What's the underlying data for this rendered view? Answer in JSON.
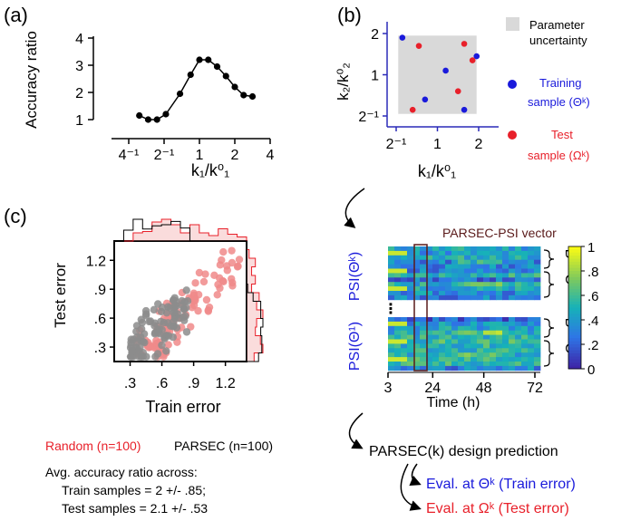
{
  "panel_a": {
    "label": "(a)",
    "ylabel": "Accuracy ratio",
    "xlabel": "k₁/k⁰₁",
    "yticks": [
      "1",
      "2",
      "3",
      "4"
    ],
    "xticks": [
      "4⁻¹",
      "2⁻¹",
      "1",
      "2",
      "4"
    ],
    "chart_data": {
      "type": "line",
      "x_log2": [
        -1.7,
        -1.45,
        -1.2,
        -0.95,
        -0.55,
        -0.25,
        0,
        0.25,
        0.5,
        0.75,
        1.0,
        1.25,
        1.5
      ],
      "y": [
        1.15,
        1.0,
        1.0,
        1.2,
        1.95,
        2.65,
        3.2,
        3.2,
        2.95,
        2.6,
        2.2,
        1.9,
        1.85
      ],
      "xlim_log2": [
        -2,
        2
      ],
      "ylim": [
        1,
        4
      ]
    }
  },
  "panel_b": {
    "label": "(b)",
    "ylabel": "k₂/k⁰₂",
    "xlabel": "k₁/k⁰₁",
    "yticks": [
      "2⁻¹",
      "1",
      "2"
    ],
    "xticks": [
      "2⁻¹",
      "1",
      "2"
    ],
    "legend_uncertainty_1": "Parameter",
    "legend_uncertainty_2": "uncertainty",
    "legend_train_1": "Training",
    "legend_train_2": "sample (Θᵏ)",
    "legend_test_1": "Test",
    "legend_test_2": "sample (Ωᵏ)",
    "colors": {
      "train": "#1a1adb",
      "test": "#e8202a",
      "region": "#d9d9d9",
      "axis": "#2a2ab8"
    },
    "chart_data": {
      "type": "scatter",
      "xlim_log2": [
        -1,
        1
      ],
      "ylim_log2": [
        -1,
        1
      ],
      "uncertainty_box_log2": {
        "x": [
          -0.95,
          0.95
        ],
        "y": [
          -0.95,
          0.95
        ]
      },
      "train": [
        [
          -0.85,
          0.9
        ],
        [
          0.2,
          0.1
        ],
        [
          0.95,
          0.45
        ],
        [
          -0.3,
          -0.6
        ],
        [
          0.65,
          -0.85
        ]
      ],
      "test": [
        [
          -0.45,
          0.7
        ],
        [
          -0.6,
          -0.85
        ],
        [
          0.5,
          -0.4
        ],
        [
          0.65,
          0.75
        ],
        [
          0.85,
          0.35
        ]
      ]
    }
  },
  "panel_c": {
    "label": "(c)",
    "ylabel": "Test error",
    "xlabel": "Train error",
    "xticks": [
      ".3",
      ".6",
      ".9",
      "1.2"
    ],
    "yticks": [
      ".3",
      ".6",
      ".9",
      "1.2"
    ],
    "legend_random": "Random (n=100)",
    "legend_parsec": "PARSEC (n=100)",
    "summary_title": "Avg. accuracy ratio across:",
    "summary_train": "Train samples = 2 +/- .85;",
    "summary_test": "Test samples = 2.1 +/- .53",
    "colors": {
      "random": "#f08a8a",
      "parsec": "#8c8c8c",
      "hist_random": "#e8202a"
    },
    "chart_data": {
      "type": "scatter",
      "xlim": [
        0.15,
        1.4
      ],
      "ylim": [
        0.15,
        1.4
      ],
      "random_seed": 7,
      "n_random": 100,
      "n_parsec": 100
    }
  },
  "psi": {
    "title": "PARSEC-PSI vector",
    "label_top": "PSI(Θᵏ)",
    "label_bottom": "PSI(Θ¹)",
    "ellipsis": "⋮",
    "brace_B": "B",
    "brace_C": "C",
    "xticks": [
      "3",
      "24",
      "48",
      "72"
    ],
    "xlabel": "Time (h)",
    "colorbar_ticks": [
      "1",
      ".8",
      ".6",
      ".4",
      ".2",
      "0"
    ],
    "chart_data": {
      "type": "heatmap",
      "rows_per_block": 12,
      "cols": 24,
      "highlight_col_range": [
        6,
        7
      ]
    }
  },
  "flow": {
    "prediction": "PARSEC(k) design prediction",
    "eval_train": "Eval. at Θᵏ (Train error)",
    "eval_test": "Eval. at Ωᵏ (Test error)",
    "colors": {
      "train": "#1a1adb",
      "test": "#e8202a"
    }
  }
}
